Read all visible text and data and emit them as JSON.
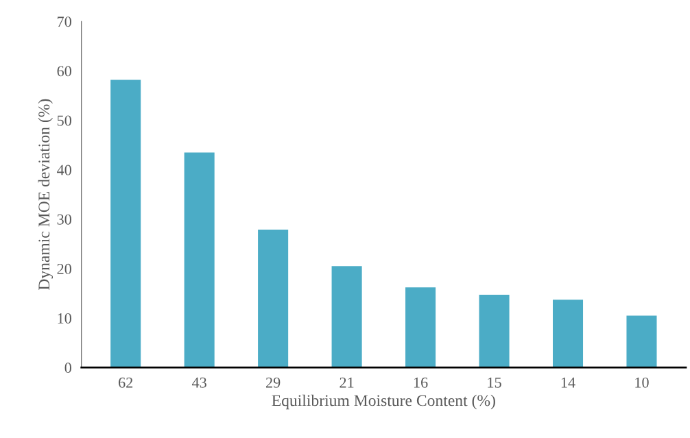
{
  "chart_data": {
    "type": "bar",
    "xlabel": "Equilibrium Moisture Content (%)",
    "ylabel": "Dynamic MOE deviation (%)",
    "categories": [
      "62",
      "43",
      "29",
      "21",
      "16",
      "15",
      "14",
      "10"
    ],
    "values": [
      58.2,
      43.5,
      27.9,
      20.5,
      16.2,
      14.7,
      13.7,
      10.5
    ],
    "color": "#4bacc6",
    "ylim": [
      0,
      70
    ],
    "yticks": [
      0,
      10,
      20,
      30,
      40,
      50,
      60,
      70
    ],
    "grid": false,
    "legend": false
  }
}
